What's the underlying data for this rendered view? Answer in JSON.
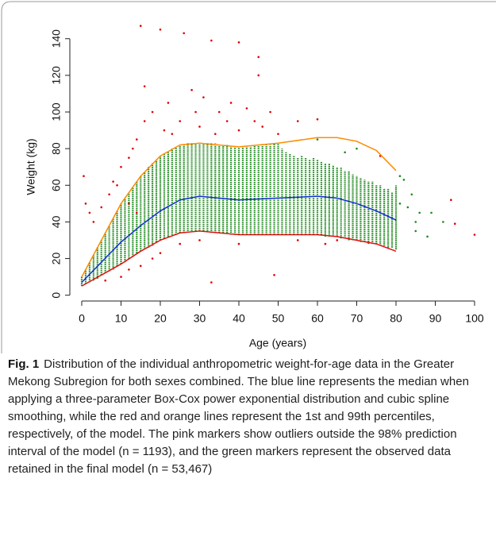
{
  "chart_data": {
    "type": "scatter",
    "xlabel": "Age (years)",
    "ylabel": "Weight (kg)",
    "xlim": [
      -3,
      102
    ],
    "ylim": [
      -4,
      144
    ],
    "xticks": [
      0,
      10,
      20,
      30,
      40,
      50,
      60,
      70,
      80,
      90,
      100
    ],
    "yticks": [
      0,
      20,
      40,
      60,
      80,
      100,
      120,
      140
    ],
    "series": [
      {
        "mode": "range",
        "color": "#1f8a1f",
        "x": [
          0,
          1,
          2,
          3,
          4,
          5,
          6,
          7,
          8,
          9,
          10,
          11,
          12,
          13,
          14,
          15,
          16,
          17,
          18,
          19,
          20,
          21,
          22,
          23,
          24,
          25,
          26,
          27,
          28,
          29,
          30,
          31,
          32,
          33,
          34,
          35,
          36,
          37,
          38,
          39,
          40,
          41,
          42,
          43,
          44,
          45,
          46,
          47,
          48,
          49,
          50,
          51,
          52,
          53,
          54,
          55,
          56,
          57,
          58,
          59,
          60,
          61,
          62,
          63,
          64,
          65,
          66,
          67,
          68,
          69,
          70,
          71,
          72,
          73,
          74,
          75,
          76,
          77,
          78,
          79,
          80
        ],
        "low": [
          5,
          6,
          7,
          8,
          9,
          11,
          12,
          13,
          14,
          16,
          17,
          18,
          20,
          21,
          23,
          24,
          25,
          26,
          27,
          29,
          30,
          31,
          32,
          33,
          33,
          34,
          34,
          35,
          35,
          35,
          35,
          35,
          35,
          34,
          34,
          34,
          34,
          34,
          33,
          33,
          33,
          33,
          33,
          33,
          33,
          33,
          33,
          33,
          33,
          33,
          33,
          33,
          33,
          33,
          33,
          33,
          33,
          33,
          33,
          33,
          33,
          33,
          32,
          32,
          32,
          32,
          31,
          31,
          30,
          30,
          30,
          29,
          29,
          28,
          28,
          28,
          27,
          27,
          26,
          26,
          25
        ],
        "high": [
          10,
          14,
          18,
          22,
          26,
          30,
          34,
          38,
          42,
          46,
          50,
          53,
          56,
          59,
          62,
          65,
          67,
          70,
          72,
          74,
          76,
          77,
          78,
          80,
          81,
          82,
          82,
          83,
          83,
          83,
          83,
          83,
          83,
          83,
          83,
          82,
          82,
          82,
          81,
          81,
          81,
          81,
          81,
          81,
          82,
          82,
          82,
          82,
          82,
          83,
          83,
          80,
          78,
          77,
          76,
          75,
          76,
          75,
          74,
          75,
          74,
          73,
          72,
          72,
          71,
          70,
          70,
          68,
          68,
          66,
          65,
          64,
          63,
          62,
          62,
          60,
          60,
          58,
          58,
          56,
          60
        ]
      },
      {
        "mode": "points",
        "color": "#1f8a1f",
        "x": [
          81,
          82,
          84,
          85,
          86,
          88,
          89,
          92,
          83,
          81,
          85,
          60,
          67,
          70
        ],
        "y": [
          65,
          63,
          55,
          40,
          45,
          32,
          45,
          40,
          48,
          50,
          35,
          85,
          78,
          80
        ]
      },
      {
        "mode": "points",
        "color": "#e00000",
        "x": [
          0.5,
          1,
          2,
          3,
          5,
          7,
          8,
          9,
          10,
          12,
          13,
          14,
          15,
          16,
          16,
          18,
          20,
          21,
          22,
          23,
          25,
          26,
          28,
          29,
          30,
          31,
          33,
          34,
          35,
          37,
          38,
          40,
          40,
          42,
          44,
          45,
          45,
          46,
          48,
          50,
          55,
          60,
          49,
          33,
          18,
          20,
          25,
          15,
          10,
          6,
          12,
          55,
          65,
          62,
          40,
          30,
          94,
          95,
          100,
          76,
          12,
          14
        ],
        "y": [
          65,
          50,
          45,
          40,
          48,
          55,
          62,
          60,
          70,
          75,
          80,
          85,
          147,
          114,
          95,
          100,
          145,
          90,
          105,
          88,
          95,
          143,
          112,
          100,
          92,
          108,
          139,
          88,
          100,
          95,
          105,
          138,
          90,
          102,
          95,
          130,
          120,
          92,
          100,
          88,
          95,
          96,
          11,
          7,
          20,
          23,
          28,
          16,
          10,
          8,
          14,
          30,
          30,
          28,
          28,
          30,
          52,
          39,
          33,
          76,
          50,
          45
        ]
      },
      {
        "mode": "line",
        "color": "#ff8c00",
        "x": [
          0,
          5,
          10,
          15,
          20,
          25,
          30,
          40,
          50,
          60,
          65,
          70,
          75,
          80
        ],
        "y": [
          10,
          30,
          50,
          65,
          76,
          82,
          83,
          81,
          83,
          86,
          86,
          84,
          79,
          68
        ]
      },
      {
        "mode": "line",
        "color": "#1030d0",
        "x": [
          0,
          5,
          10,
          15,
          20,
          25,
          30,
          40,
          50,
          60,
          65,
          70,
          75,
          80
        ],
        "y": [
          7,
          18,
          29,
          38,
          46,
          52,
          54,
          52,
          53,
          54,
          53,
          50,
          46,
          41
        ]
      },
      {
        "mode": "line",
        "color": "#e01010",
        "x": [
          0,
          5,
          10,
          15,
          20,
          25,
          30,
          40,
          50,
          60,
          65,
          70,
          75,
          80
        ],
        "y": [
          5,
          11,
          17,
          24,
          30,
          34,
          35,
          33,
          33,
          33,
          32,
          30,
          28,
          24
        ]
      }
    ]
  },
  "caption": {
    "label": "Fig. 1",
    "text": "Distribution of the individual anthropometric weight-for-age data in the Greater Mekong Subregion for both sexes combined. The blue line represents the median when applying a three-parameter Box-Cox power exponential distribution and cubic spline smoothing, while the red and orange lines represent the 1st and 99th percentiles, respectively, of the model. The pink markers show outliers outside the 98% prediction interval of the model (n = 1193), and the green markers represent the observed data retained in the final model (n = 53,467)"
  }
}
